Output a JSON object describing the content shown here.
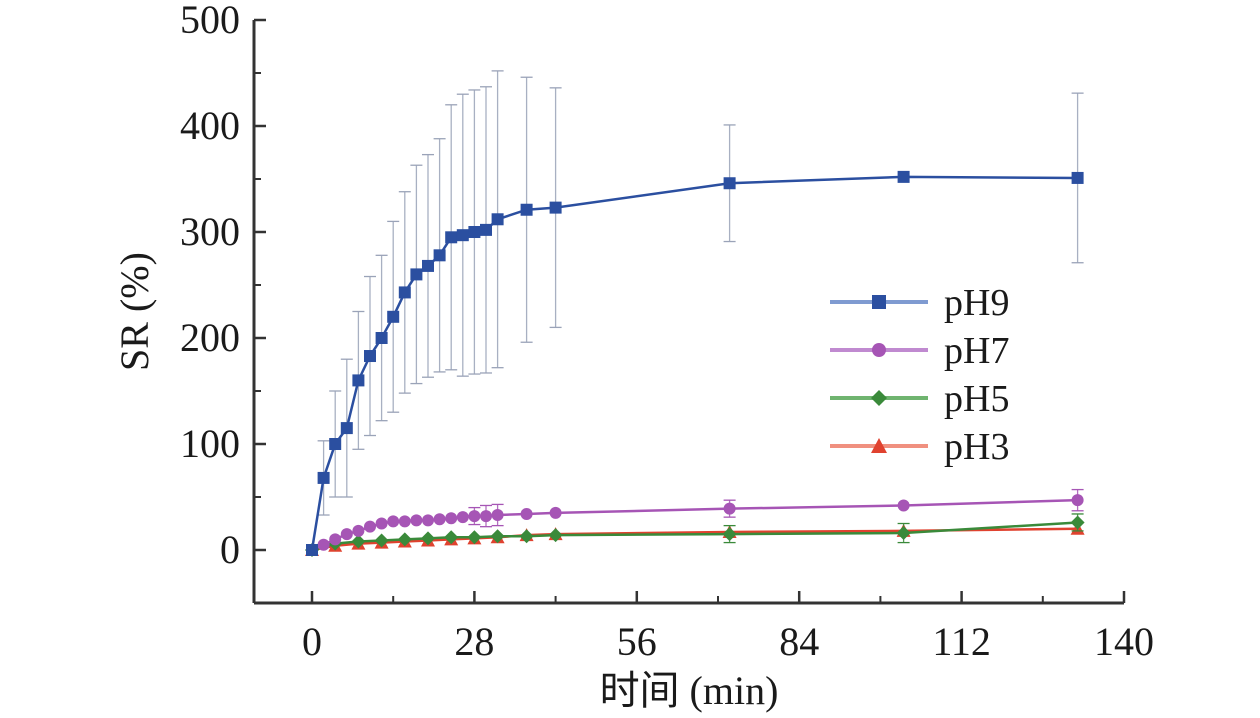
{
  "chart_data": {
    "type": "line",
    "xlabel": "时间 (min)",
    "ylabel": "SR (%)",
    "xlim": [
      -10,
      140
    ],
    "ylim": [
      -50,
      500
    ],
    "xticks": [
      0,
      28,
      56,
      84,
      112,
      140
    ],
    "yticks": [
      0,
      100,
      200,
      300,
      400,
      500
    ],
    "legend_position": "right",
    "series": [
      {
        "name": "pH9",
        "color": "#2b4fa0",
        "marker": "square",
        "points": [
          {
            "x": 0,
            "y": 0
          },
          {
            "x": 2,
            "y": 68,
            "err": 35
          },
          {
            "x": 4,
            "y": 100,
            "err": 50
          },
          {
            "x": 6,
            "y": 115,
            "err": 65
          },
          {
            "x": 8,
            "y": 160,
            "err": 65
          },
          {
            "x": 10,
            "y": 183,
            "err": 75
          },
          {
            "x": 12,
            "y": 200,
            "err": 78
          },
          {
            "x": 14,
            "y": 220,
            "err": 90
          },
          {
            "x": 16,
            "y": 243,
            "err": 95
          },
          {
            "x": 18,
            "y": 260,
            "err": 103
          },
          {
            "x": 20,
            "y": 268,
            "err": 105
          },
          {
            "x": 22,
            "y": 278,
            "err": 110
          },
          {
            "x": 24,
            "y": 295,
            "err": 125
          },
          {
            "x": 26,
            "y": 297,
            "err": 133
          },
          {
            "x": 28,
            "y": 300,
            "err": 134
          },
          {
            "x": 30,
            "y": 302,
            "err": 135
          },
          {
            "x": 32,
            "y": 312,
            "err": 140
          },
          {
            "x": 37,
            "y": 321,
            "err": 125
          },
          {
            "x": 42,
            "y": 323,
            "err": 113
          },
          {
            "x": 72,
            "y": 346,
            "err": 55
          },
          {
            "x": 102,
            "y": 352
          },
          {
            "x": 132,
            "y": 351,
            "err": 80
          }
        ]
      },
      {
        "name": "pH7",
        "color": "#a655b5",
        "marker": "circle",
        "points": [
          {
            "x": 0,
            "y": 0
          },
          {
            "x": 2,
            "y": 5
          },
          {
            "x": 4,
            "y": 10
          },
          {
            "x": 6,
            "y": 15
          },
          {
            "x": 8,
            "y": 18
          },
          {
            "x": 10,
            "y": 22
          },
          {
            "x": 12,
            "y": 25
          },
          {
            "x": 14,
            "y": 27
          },
          {
            "x": 16,
            "y": 27
          },
          {
            "x": 18,
            "y": 28
          },
          {
            "x": 20,
            "y": 28
          },
          {
            "x": 22,
            "y": 29
          },
          {
            "x": 24,
            "y": 30
          },
          {
            "x": 26,
            "y": 31
          },
          {
            "x": 28,
            "y": 32,
            "err": 8
          },
          {
            "x": 30,
            "y": 32,
            "err": 10
          },
          {
            "x": 32,
            "y": 33,
            "err": 10
          },
          {
            "x": 37,
            "y": 34
          },
          {
            "x": 42,
            "y": 35
          },
          {
            "x": 72,
            "y": 39,
            "err": 8
          },
          {
            "x": 102,
            "y": 42
          },
          {
            "x": 132,
            "y": 47,
            "err": 10
          }
        ]
      },
      {
        "name": "pH5",
        "color": "#3a8a3a",
        "marker": "diamond",
        "points": [
          {
            "x": 0,
            "y": 0
          },
          {
            "x": 4,
            "y": 6
          },
          {
            "x": 8,
            "y": 8
          },
          {
            "x": 12,
            "y": 9
          },
          {
            "x": 16,
            "y": 10
          },
          {
            "x": 20,
            "y": 11
          },
          {
            "x": 24,
            "y": 12
          },
          {
            "x": 28,
            "y": 12
          },
          {
            "x": 32,
            "y": 13
          },
          {
            "x": 37,
            "y": 13
          },
          {
            "x": 42,
            "y": 14
          },
          {
            "x": 72,
            "y": 15,
            "err": 8
          },
          {
            "x": 102,
            "y": 16,
            "err": 9
          },
          {
            "x": 132,
            "y": 26,
            "err": 8
          }
        ]
      },
      {
        "name": "pH3",
        "color": "#e0422f",
        "marker": "triangle",
        "points": [
          {
            "x": 0,
            "y": 0
          },
          {
            "x": 4,
            "y": 4
          },
          {
            "x": 8,
            "y": 6
          },
          {
            "x": 12,
            "y": 7
          },
          {
            "x": 16,
            "y": 8
          },
          {
            "x": 20,
            "y": 9
          },
          {
            "x": 24,
            "y": 10
          },
          {
            "x": 28,
            "y": 11
          },
          {
            "x": 32,
            "y": 12
          },
          {
            "x": 37,
            "y": 14
          },
          {
            "x": 42,
            "y": 15
          },
          {
            "x": 72,
            "y": 17
          },
          {
            "x": 102,
            "y": 18
          },
          {
            "x": 132,
            "y": 20
          }
        ]
      }
    ]
  }
}
